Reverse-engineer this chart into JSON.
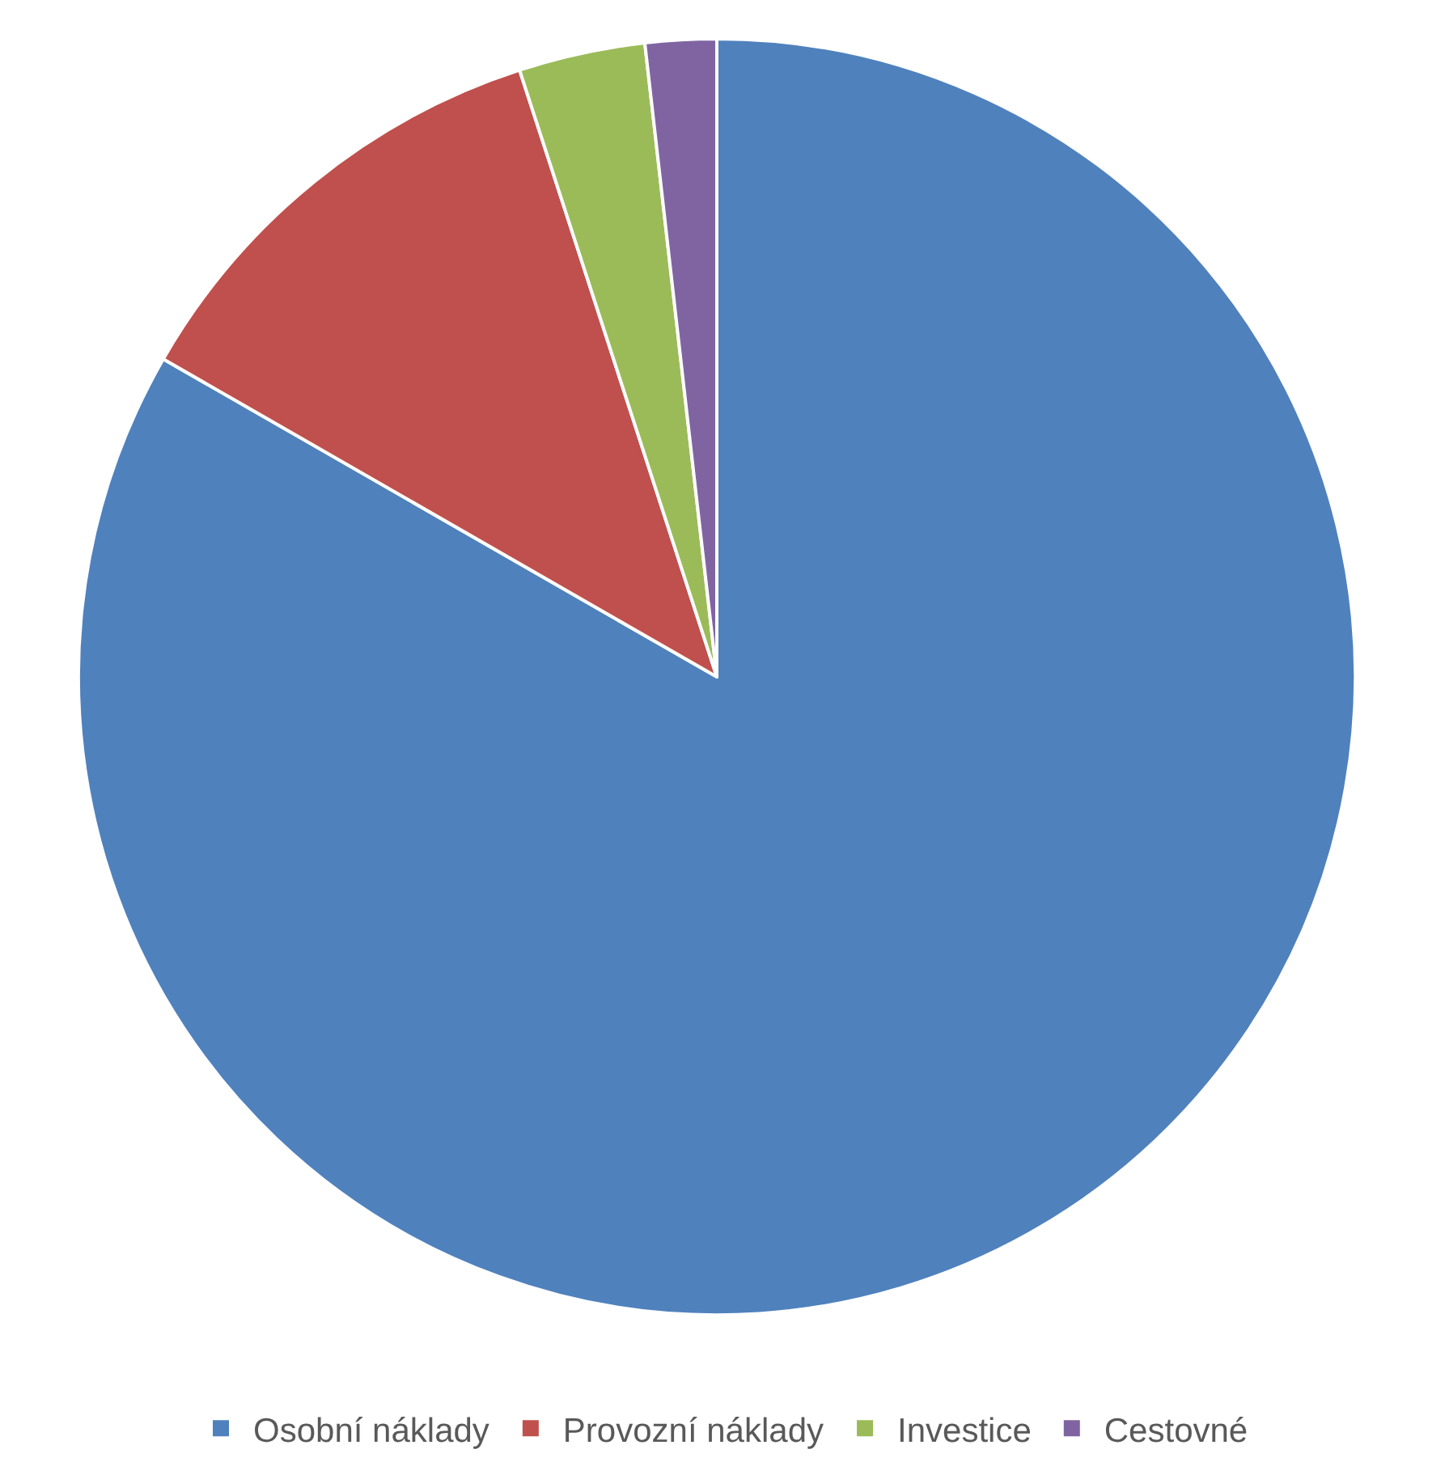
{
  "chart_data": {
    "type": "pie",
    "categories": [
      "Osobní náklady",
      "Provozní náklady",
      "Investice",
      "Cestovné"
    ],
    "values": [
      83.3,
      11.7,
      3.2,
      1.8
    ],
    "colors": [
      "#4f81bd",
      "#c0504d",
      "#9bbb59",
      "#8064a2"
    ],
    "legend": "bottom"
  }
}
